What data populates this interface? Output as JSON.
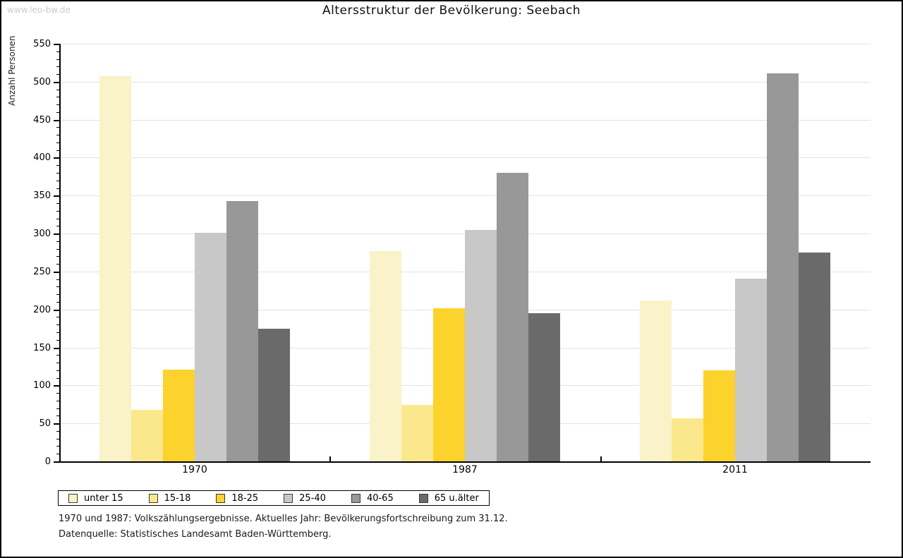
{
  "watermark": "www.leo-bw.de",
  "title": "Altersstruktur der Bevölkerung: Seebach",
  "footnotes": [
    "1970 und 1987: Volkszählungsergebnisse. Aktuelles Jahr: Bevölkerungsfortschreibung zum 31.12.",
    "Datenquelle: Statistisches Landesamt Baden-Württemberg."
  ],
  "chart_data": {
    "type": "bar",
    "title": "Altersstruktur der Bevölkerung: Seebach",
    "xlabel": "",
    "ylabel": "Anzahl Personen",
    "categories": [
      "1970",
      "1987",
      "2011"
    ],
    "series": [
      {
        "name": "unter 15",
        "color": "#FAF2C8",
        "values": [
          507,
          277,
          212
        ]
      },
      {
        "name": "15-18",
        "color": "#FBE88C",
        "values": [
          68,
          74,
          57
        ]
      },
      {
        "name": "18-25",
        "color": "#FCD22D",
        "values": [
          121,
          202,
          120
        ]
      },
      {
        "name": "25-40",
        "color": "#C8C8C8",
        "values": [
          301,
          305,
          241
        ]
      },
      {
        "name": "40-65",
        "color": "#989898",
        "values": [
          343,
          380,
          511
        ]
      },
      {
        "name": "65 u.älter",
        "color": "#6A6A6A",
        "values": [
          175,
          195,
          275
        ]
      }
    ],
    "ylim": [
      0,
      550
    ],
    "ytick_major": 50,
    "ytick_minor": 10,
    "grid": true,
    "gridline_color": "#e3e3e3",
    "legend_position": "bottom-left"
  }
}
